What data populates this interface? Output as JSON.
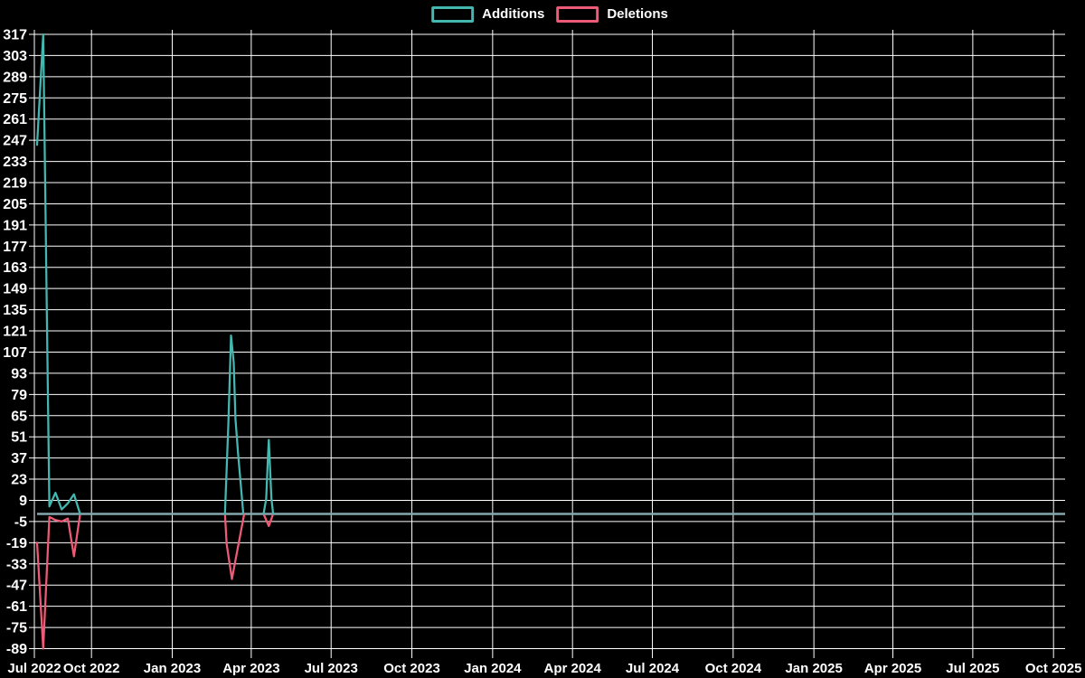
{
  "legend": {
    "items": [
      {
        "label": "Additions",
        "color": "#44b8b0"
      },
      {
        "label": "Deletions",
        "color": "#ee5b76"
      }
    ]
  },
  "chart_data": {
    "type": "line",
    "title": "",
    "background": "#000000",
    "grid_color": "#ffffff",
    "text_color": "#ffffff",
    "zero_line_color": "#83a7ae",
    "x_axis": {
      "start_date": "2022-07-31",
      "end_date": "2025-10-14",
      "ticks": [
        {
          "date": "2022-07-31",
          "label": "Jul 2022"
        },
        {
          "date": "2022-10-01",
          "label": "Oct 2022"
        },
        {
          "date": "2023-01-01",
          "label": "Jan 2023"
        },
        {
          "date": "2023-04-01",
          "label": "Apr 2023"
        },
        {
          "date": "2023-07-01",
          "label": "Jul 2023"
        },
        {
          "date": "2023-10-01",
          "label": "Oct 2023"
        },
        {
          "date": "2024-01-01",
          "label": "Jan 2024"
        },
        {
          "date": "2024-04-01",
          "label": "Apr 2024"
        },
        {
          "date": "2024-07-01",
          "label": "Jul 2024"
        },
        {
          "date": "2024-10-01",
          "label": "Oct 2024"
        },
        {
          "date": "2025-01-01",
          "label": "Jan 2025"
        },
        {
          "date": "2025-04-01",
          "label": "Apr 2025"
        },
        {
          "date": "2025-07-01",
          "label": "Jul 2025"
        },
        {
          "date": "2025-10-01",
          "label": "Oct 2025"
        }
      ]
    },
    "y_axis": {
      "min": -89,
      "max": 317,
      "step": 14,
      "ticks": [
        317,
        303,
        289,
        275,
        261,
        247,
        233,
        219,
        205,
        191,
        177,
        163,
        149,
        135,
        121,
        107,
        93,
        79,
        65,
        51,
        37,
        23,
        9,
        -5,
        -19,
        -33,
        -47,
        -61,
        -75,
        -89
      ]
    },
    "series": [
      {
        "name": "Additions",
        "color": "#44b8b0",
        "segments": [
          [
            [
              "2022-07-31",
              244
            ],
            [
              "2022-08-07",
              317
            ],
            [
              "2022-08-14",
              5
            ],
            [
              "2022-08-21",
              14
            ],
            [
              "2022-08-28",
              3
            ],
            [
              "2022-09-04",
              7
            ],
            [
              "2022-09-11",
              13
            ],
            [
              "2022-09-18",
              0
            ]
          ],
          [
            [
              "2023-03-02",
              0
            ],
            [
              "2023-03-06",
              60
            ],
            [
              "2023-03-09",
              118
            ],
            [
              "2023-03-12",
              100
            ],
            [
              "2023-03-14",
              63
            ],
            [
              "2023-03-17",
              40
            ],
            [
              "2023-03-23",
              0
            ]
          ],
          [
            [
              "2023-04-15",
              0
            ],
            [
              "2023-04-18",
              10
            ],
            [
              "2023-04-20",
              37
            ],
            [
              "2023-04-21",
              49
            ],
            [
              "2023-04-24",
              10
            ],
            [
              "2023-04-26",
              0
            ]
          ]
        ]
      },
      {
        "name": "Deletions",
        "color": "#ee5b76",
        "segments": [
          [
            [
              "2022-07-31",
              -19
            ],
            [
              "2022-08-07",
              -89
            ],
            [
              "2022-08-14",
              -2
            ],
            [
              "2022-08-21",
              -4
            ],
            [
              "2022-08-28",
              -5
            ],
            [
              "2022-09-04",
              -3
            ],
            [
              "2022-09-11",
              -28
            ],
            [
              "2022-09-18",
              0
            ]
          ],
          [
            [
              "2023-03-02",
              0
            ],
            [
              "2023-03-04",
              -20
            ],
            [
              "2023-03-10",
              -43
            ],
            [
              "2023-03-24",
              0
            ]
          ],
          [
            [
              "2023-04-15",
              0
            ],
            [
              "2023-04-21",
              -8
            ],
            [
              "2023-04-26",
              0
            ]
          ]
        ]
      }
    ]
  }
}
